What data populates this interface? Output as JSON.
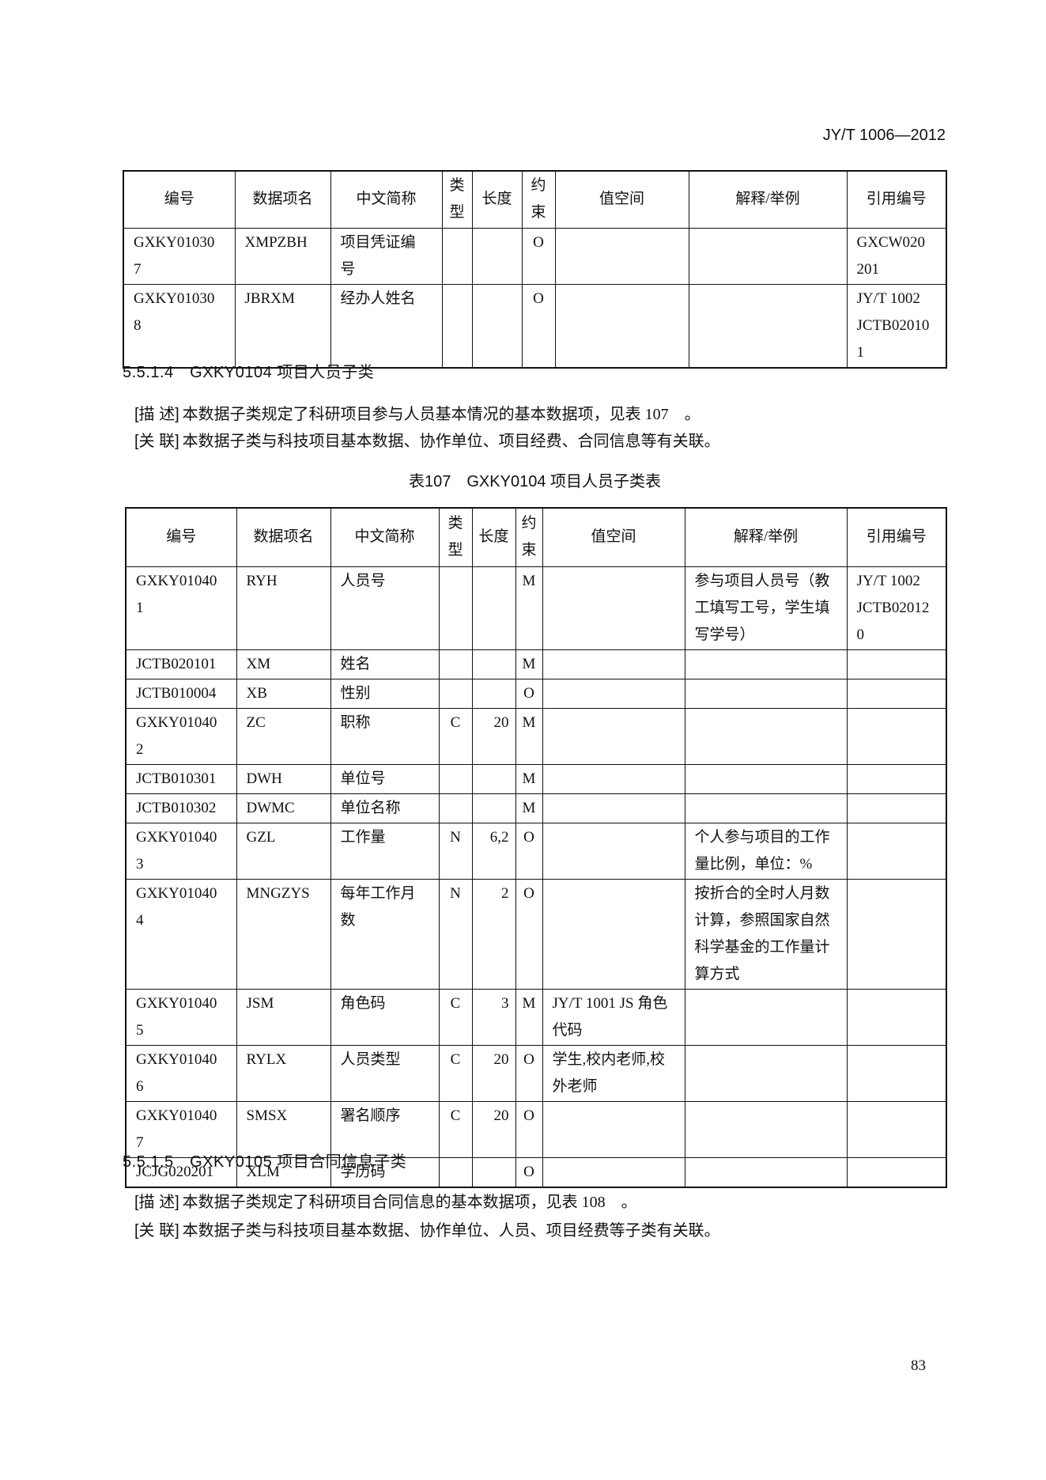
{
  "header": {
    "code": "JY/T 1006—2012"
  },
  "table1": {
    "columns": [
      "编号",
      "数据项名",
      "中文简称",
      "类型",
      "长度",
      "约束",
      "值空间",
      "解释/举例",
      "引用编号"
    ],
    "rows": [
      [
        "GXKY010307",
        "XMPZBH",
        "项目凭证编号",
        null,
        null,
        "O",
        null,
        null,
        "GXCW020201"
      ],
      [
        "GXKY010308",
        "JBRXM",
        "经办人姓名",
        null,
        null,
        "O",
        null,
        null,
        "JY/T 1002 JCTB020101"
      ]
    ]
  },
  "section1": {
    "title": "5.5.1.4　GXKY0104 项目人员子类",
    "desc": {
      "label": "[描 述]",
      "text": "本数据子类规定了科研项目参与人员基本情况的基本数据项，见表 107　。"
    },
    "rel": {
      "label": "[关 联]",
      "text": "本数据子类与科技项目基本数据、协作单位、项目经费、合同信息等有关联。"
    }
  },
  "table2": {
    "caption": "表107　GXKY0104 项目人员子类表",
    "columns": [
      "编号",
      "数据项名",
      "中文简称",
      "类型",
      "长度",
      "约束",
      "值空间",
      "解释/举例",
      "引用编号"
    ],
    "rows": [
      [
        "GXKY010401",
        "RYH",
        "人员号",
        null,
        null,
        "M",
        null,
        "参与项目人员号（教工填写工号，学生填写学号）",
        "JY/T 1002 JCTB020120"
      ],
      [
        "JCTB020101",
        "XM",
        "姓名",
        null,
        null,
        "M",
        null,
        null,
        null
      ],
      [
        "JCTB010004",
        "XB",
        "性别",
        null,
        null,
        "O",
        null,
        null,
        null
      ],
      [
        "GXKY010402",
        "ZC",
        "职称",
        "C",
        "20",
        "M",
        null,
        null,
        null
      ],
      [
        "JCTB010301",
        "DWH",
        "单位号",
        null,
        null,
        "M",
        null,
        null,
        null
      ],
      [
        "JCTB010302",
        "DWMC",
        "单位名称",
        null,
        null,
        "M",
        null,
        null,
        null
      ],
      [
        "GXKY010403",
        "GZL",
        "工作量",
        "N",
        "6,2",
        "O",
        null,
        "个人参与项目的工作量比例，单位：%",
        null
      ],
      [
        "GXKY010404",
        "MNGZYS",
        "每年工作月数",
        "N",
        "2",
        "O",
        null,
        "按折合的全时人月数计算，参照国家自然科学基金的工作量计算方式",
        null
      ],
      [
        "GXKY010405",
        "JSM",
        "角色码",
        "C",
        "3",
        "M",
        "JY/T 1001 JS 角色代码",
        null,
        null
      ],
      [
        "GXKY010406",
        "RYLX",
        "人员类型",
        "C",
        "20",
        "O",
        "学生,校内老师,校外老师",
        null,
        null
      ],
      [
        "GXKY010407",
        "SMSX",
        "署名顺序",
        "C",
        "20",
        "O",
        null,
        null,
        null
      ],
      [
        "JCJG020201",
        "XLM",
        "学历码",
        null,
        null,
        "O",
        null,
        null,
        null
      ]
    ]
  },
  "section2": {
    "title": "5.5.1.5　GXKY0105 项目合同信息子类",
    "desc": {
      "label": "[描 述]",
      "text": "本数据子类规定了科研项目合同信息的基本数据项，见表 108　。"
    },
    "rel": {
      "label": "[关 联]",
      "text": "本数据子类与科技项目基本数据、协作单位、人员、项目经费等子类有关联。"
    }
  },
  "footer": {
    "page": "83"
  }
}
